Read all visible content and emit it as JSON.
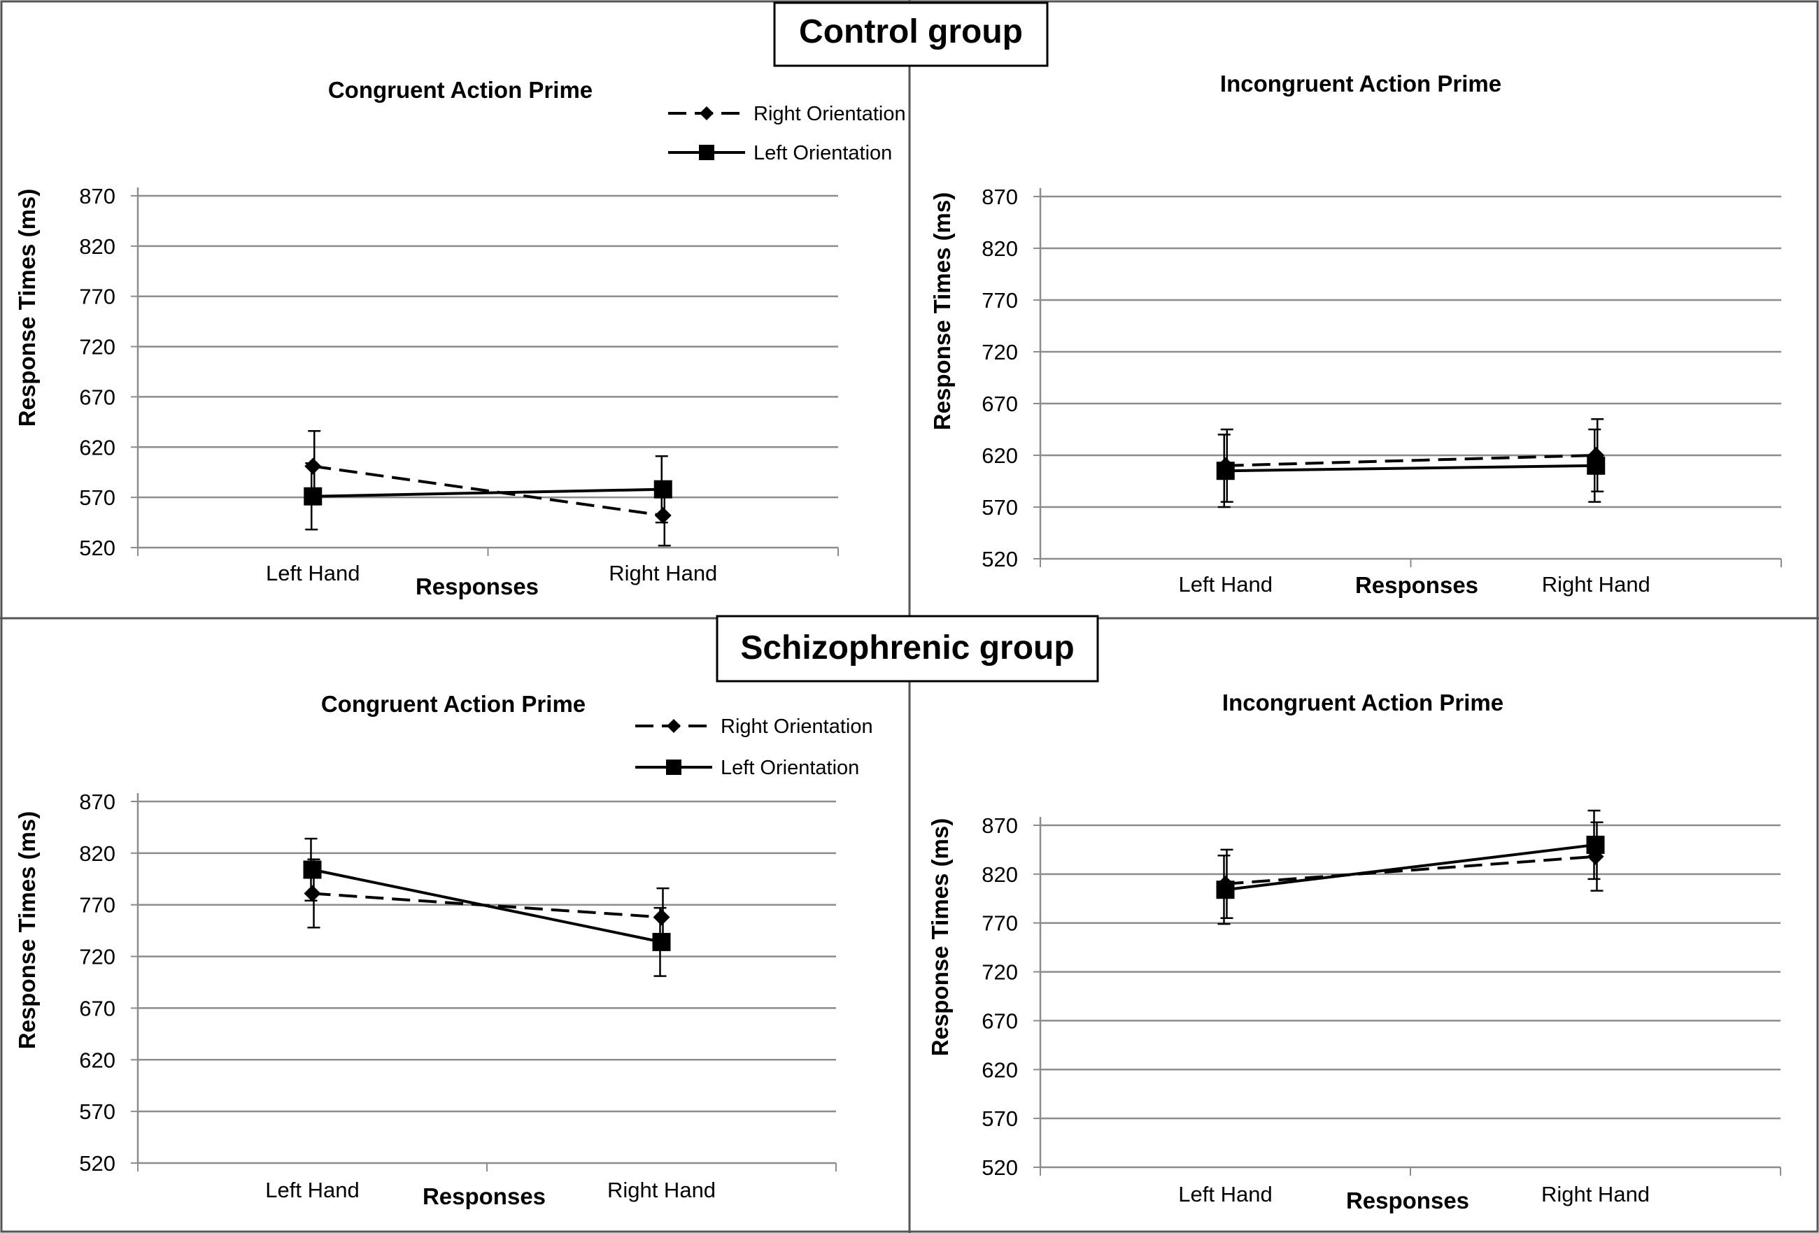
{
  "groups": [
    {
      "name": "Control group"
    },
    {
      "name": "Schizophrenic group"
    }
  ],
  "chart_data": [
    {
      "type": "line",
      "group": "Control group",
      "title": "Congruent Action Prime",
      "xlabel": "Responses",
      "ylabel": "Response Times (ms)",
      "categories": [
        "Left Hand",
        "Right Hand"
      ],
      "yticks": [
        "520",
        "570",
        "620",
        "670",
        "720",
        "770",
        "820",
        "870"
      ],
      "ylim": [
        520,
        870
      ],
      "legend": {
        "position": "top-right"
      },
      "series": [
        {
          "name": "Right Orientation",
          "style": "dashed",
          "marker": "diamond",
          "values": [
            601,
            552
          ],
          "errors": [
            35,
            30
          ]
        },
        {
          "name": "Left Orientation",
          "style": "solid",
          "marker": "square",
          "values": [
            571,
            578
          ],
          "errors": [
            33,
            33
          ]
        }
      ]
    },
    {
      "type": "line",
      "group": "Control group",
      "title": "Incongruent Action Prime",
      "xlabel": "Responses",
      "ylabel": "Response Times (ms)",
      "categories": [
        "Left Hand",
        "Right Hand"
      ],
      "yticks": [
        "520",
        "570",
        "620",
        "670",
        "720",
        "770",
        "820",
        "870"
      ],
      "ylim": [
        520,
        870
      ],
      "legend": {
        "position": "none"
      },
      "series": [
        {
          "name": "Right Orientation",
          "style": "dashed",
          "marker": "diamond",
          "values": [
            610,
            620
          ],
          "errors": [
            35,
            35
          ]
        },
        {
          "name": "Left Orientation",
          "style": "solid",
          "marker": "square",
          "values": [
            605,
            610
          ],
          "errors": [
            35,
            35
          ]
        }
      ]
    },
    {
      "type": "line",
      "group": "Schizophrenic group",
      "title": "Congruent Action Prime",
      "xlabel": "Responses",
      "ylabel": "Response Times (ms)",
      "categories": [
        "Left Hand",
        "Right Hand"
      ],
      "yticks": [
        "520",
        "570",
        "620",
        "670",
        "720",
        "770",
        "820",
        "870"
      ],
      "ylim": [
        520,
        870
      ],
      "legend": {
        "position": "top-right"
      },
      "series": [
        {
          "name": "Right Orientation",
          "style": "dashed",
          "marker": "diamond",
          "values": [
            781,
            758
          ],
          "errors": [
            33,
            28
          ]
        },
        {
          "name": "Left Orientation",
          "style": "solid",
          "marker": "square",
          "values": [
            804,
            734
          ],
          "errors": [
            30,
            33
          ]
        }
      ]
    },
    {
      "type": "line",
      "group": "Schizophrenic group",
      "title": "Incongruent Action Prime",
      "xlabel": "Responses",
      "ylabel": "Response Times (ms)",
      "categories": [
        "Left Hand",
        "Right Hand"
      ],
      "yticks": [
        "520",
        "570",
        "620",
        "670",
        "720",
        "770",
        "820",
        "870"
      ],
      "ylim": [
        520,
        870
      ],
      "legend": {
        "position": "none"
      },
      "series": [
        {
          "name": "Right Orientation",
          "style": "dashed",
          "marker": "diamond",
          "values": [
            810,
            838
          ],
          "errors": [
            35,
            35
          ]
        },
        {
          "name": "Left Orientation",
          "style": "solid",
          "marker": "square",
          "values": [
            804,
            850
          ],
          "errors": [
            35,
            35
          ]
        }
      ]
    }
  ]
}
